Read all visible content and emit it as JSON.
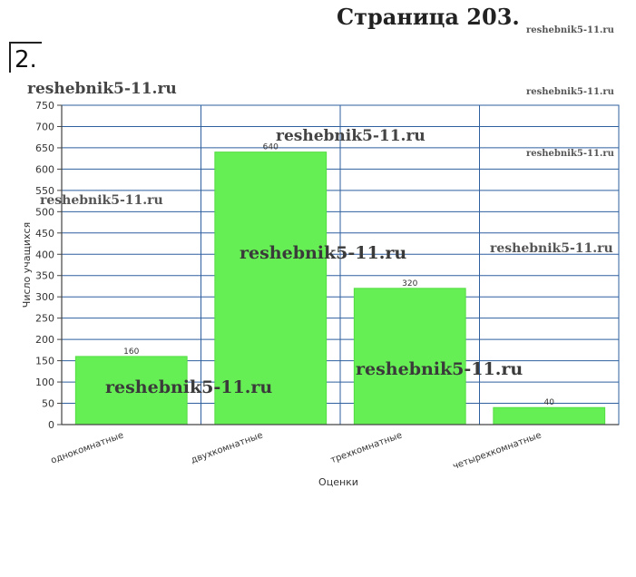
{
  "page": {
    "title": "Страница 203.",
    "task_number": "2."
  },
  "watermarks": [
    "reshebnik5-11.ru",
    "reshebnik5-11.ru",
    "reshebnik5-11.ru",
    "reshebnik5-11.ru",
    "reshebnik5-11.ru",
    "reshebnik5-11.ru",
    "reshebnik5-11.ru",
    "reshebnik5-11.ru",
    "reshebnik5-11.ru",
    "reshebnik5-11.ru"
  ],
  "colors": {
    "bar": "#66ee55",
    "bar_edge": "#55dd44",
    "grid": "#2f5f9f",
    "axis": "#444444"
  },
  "chart_data": {
    "type": "bar",
    "categories": [
      "однокомнатные",
      "двухкомнатные",
      "трехкомнатные",
      "четырехкомнатные"
    ],
    "values": [
      160,
      640,
      320,
      40
    ],
    "data_labels": [
      "160",
      "640",
      "320",
      "40"
    ],
    "xlabel": "Оценки",
    "ylabel": "Число учащихся",
    "ylim": [
      0,
      750
    ],
    "yticks": [
      0,
      50,
      100,
      150,
      200,
      250,
      300,
      350,
      400,
      450,
      500,
      550,
      600,
      650,
      700,
      750
    ],
    "grid": true,
    "legend": "none"
  }
}
